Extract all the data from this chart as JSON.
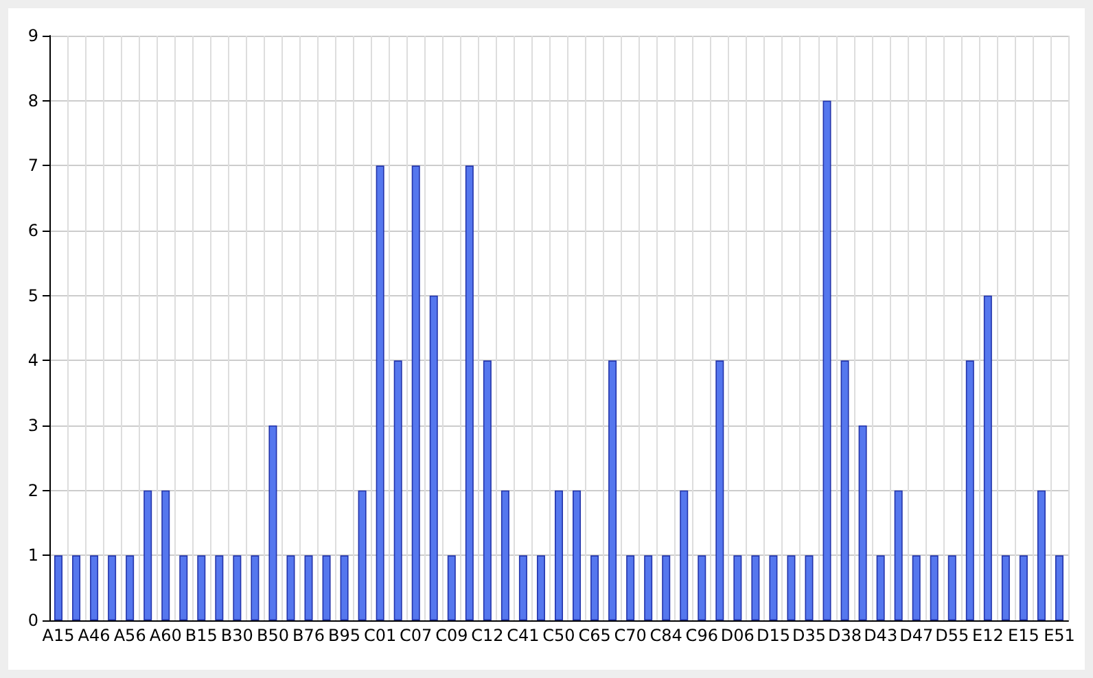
{
  "chart_data": {
    "type": "bar",
    "categories": [
      "A15",
      null,
      "A46",
      null,
      "A56",
      null,
      "A60",
      null,
      "B15",
      null,
      "B30",
      null,
      "B50",
      null,
      "B76",
      null,
      "B95",
      null,
      "C01",
      null,
      "C07",
      null,
      "C09",
      null,
      "C12",
      null,
      "C41",
      null,
      "C50",
      null,
      "C65",
      null,
      "C70",
      null,
      "C84",
      null,
      "C96",
      null,
      "D06",
      null,
      "D15",
      null,
      "D35",
      null,
      "D38",
      null,
      "D43",
      null,
      "D47",
      null,
      "D55",
      null,
      "E12",
      null,
      "E15",
      null,
      "E51"
    ],
    "values": [
      1,
      1,
      1,
      1,
      1,
      2,
      2,
      1,
      1,
      1,
      1,
      1,
      3,
      1,
      1,
      1,
      1,
      2,
      7,
      4,
      7,
      5,
      1,
      7,
      4,
      2,
      1,
      1,
      2,
      2,
      1,
      4,
      1,
      1,
      1,
      2,
      1,
      4,
      1,
      1,
      1,
      1,
      1,
      8,
      4,
      3,
      1,
      2,
      1,
      1,
      1,
      4,
      5,
      1,
      1,
      2,
      1
    ],
    "color": "#5577ee",
    "ylim": [
      0,
      9
    ],
    "yticks": [
      0,
      1,
      2,
      3,
      4,
      5,
      6,
      7,
      8,
      9
    ],
    "grid": true
  }
}
